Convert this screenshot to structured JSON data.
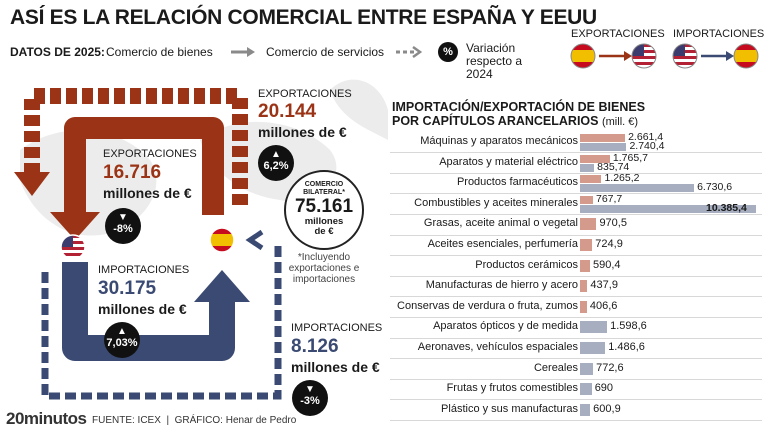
{
  "title": "ASÍ ES LA RELACIÓN COMERCIAL ENTRE ESPAÑA Y EEUU",
  "legend": {
    "prefix": "DATOS DE 2025:",
    "goods": "Comercio de bienes",
    "services": "Comercio de servicios",
    "pct_symbol": "%",
    "variation": "Variación respecto a 2024",
    "exports_label": "EXPORTACIONES",
    "imports_label": "IMPORTACIONES"
  },
  "colors": {
    "exports": "#9b3416",
    "imports": "#3a4a72",
    "export_bar": "#d49a8c",
    "import_bar": "#a6aebf",
    "spain_red": "#c60b1e",
    "spain_yellow": "#f1bf00",
    "us_blue": "#3c3b6e",
    "us_red": "#b22234"
  },
  "flow": {
    "services_exports": {
      "label": "EXPORTACIONES",
      "value": "20.144",
      "unit": "millones de €",
      "change": "6,2%",
      "direction": "up"
    },
    "goods_exports": {
      "label": "EXPORTACIONES",
      "value": "16.716",
      "unit": "millones de €",
      "change": "-8%",
      "direction": "down"
    },
    "goods_imports": {
      "label": "IMPORTACIONES",
      "value": "30.175",
      "unit": "millones de €",
      "change": "7,03%",
      "direction": "up"
    },
    "services_imports": {
      "label": "IMPORTACIONES",
      "value": "8.126",
      "unit": "millones de €",
      "change": "-3%",
      "direction": "down"
    },
    "bilateral": {
      "label": "COMERCIO BILATERAL*",
      "value": "75.161",
      "unit": "millones de €",
      "note": "*Incluyendo exportaciones e importaciones"
    }
  },
  "chart_data": {
    "type": "bar",
    "title": "IMPORTACIÓN/EXPORTACIÓN DE BIENES POR CAPÍTULOS ARANCELARIOS",
    "unit": "(mill. €)",
    "categories": [
      "Máquinas y aparatos mecánicos",
      "Aparatos y material eléctrico",
      "Productos farmacéuticos",
      "Combustibles y aceites minerales",
      "Grasas, aceite animal o vegetal",
      "Aceites esenciales, perfumería",
      "Productos cerámicos",
      "Manufacturas de hierro y acero",
      "Conservas de verdura o fruta, zumos",
      "Aparatos ópticos y de medida",
      "Aeronaves, vehículos espaciales",
      "Cereales",
      "Frutas y frutos comestibles",
      "Plástico y sus manufacturas"
    ],
    "series": [
      {
        "name": "EXPORTACIONES",
        "values": [
          2661.4,
          1765.7,
          1265.2,
          767.7,
          970.5,
          724.9,
          590.4,
          437.9,
          406.6,
          null,
          null,
          null,
          null,
          null
        ]
      },
      {
        "name": "IMPORTACIONES",
        "values": [
          2740.4,
          835.74,
          6730.6,
          10385.4,
          null,
          null,
          null,
          null,
          null,
          1598.6,
          1486.6,
          772.6,
          690,
          600.9
        ]
      }
    ],
    "value_labels": {
      "exports": [
        "2.661,4",
        "1.765,7",
        "1.265,2",
        "767,7",
        "970,5",
        "724,9",
        "590,4",
        "437,9",
        "406,6",
        "",
        "",
        "",
        "",
        ""
      ],
      "imports": [
        "2.740,4",
        "835,74",
        "6.730,6",
        "10.385,4",
        "",
        "",
        "",
        "",
        "",
        "1.598,6",
        "1.486,6",
        "772,6",
        "690",
        "600,9"
      ]
    }
  },
  "footer": {
    "brand": "20minutos",
    "source": "FUENTE: ICEX  |  GRÁFICO: Henar de Pedro"
  }
}
